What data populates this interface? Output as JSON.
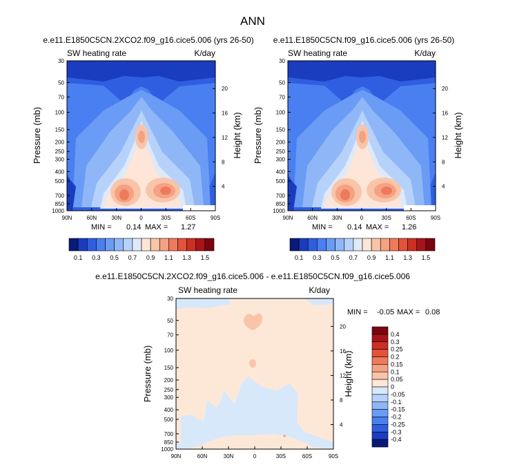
{
  "page": {
    "title": "ANN"
  },
  "colors": {
    "seq": [
      "#0a1a7a",
      "#1a3cbf",
      "#2f5fe0",
      "#4a7ff2",
      "#6a9bf5",
      "#8fb7f7",
      "#b7d2fa",
      "#dfe9f8",
      "#fde6d8",
      "#f9c4a8",
      "#f5a183",
      "#ee7a5c",
      "#e4523a",
      "#cc3022",
      "#a8141a",
      "#7a0510"
    ],
    "diff": [
      "#0a1a7a",
      "#1a3cbf",
      "#2f5fe0",
      "#4a7ff2",
      "#6a9bf5",
      "#8fb7f7",
      "#b7d2fa",
      "#d8e8fb",
      "#fde8d8",
      "#f9c4a8",
      "#f5a183",
      "#ee7a5c",
      "#e4523a",
      "#cc3022",
      "#a8141a",
      "#7a0510"
    ]
  },
  "chart_data": [
    {
      "type": "heatmap",
      "title": "e.e11.E1850C5CN.2XCO2.f09_g16.cice5.006 (yrs 26-50)",
      "left_label": "SW heating rate",
      "right_label": "K/day",
      "ylabel": "Pressure (mb)",
      "y2label": "Height (km)",
      "x_ticks": [
        "90N",
        "60N",
        "30N",
        "0",
        "30S",
        "60S",
        "90S"
      ],
      "y_ticks": [
        "30",
        "50",
        "70",
        "100",
        "150",
        "200",
        "250",
        "300",
        "400",
        "500",
        "700",
        "850",
        "1000"
      ],
      "y2_ticks": [
        "20",
        "16",
        "12",
        "8",
        "4"
      ],
      "min_label": "MIN =",
      "min_value": "0.14",
      "max_label": "MAX =",
      "max_value": "1.27",
      "colorbar_labels": [
        "0.1",
        "0.3",
        "0.5",
        "0.7",
        "0.9",
        "1.1",
        "1.3",
        "1.5"
      ]
    },
    {
      "type": "heatmap",
      "title": "e.e11.E1850C5CN.f09_g16.cice5.006 (yrs 26-50)",
      "left_label": "SW heating rate",
      "right_label": "K/day",
      "ylabel": "Pressure (mb)",
      "y2label": "Height (km)",
      "x_ticks": [
        "90N",
        "60N",
        "30N",
        "0",
        "30S",
        "60S",
        "90S"
      ],
      "y_ticks": [
        "30",
        "50",
        "70",
        "100",
        "150",
        "200",
        "250",
        "300",
        "400",
        "500",
        "700",
        "850",
        "1000"
      ],
      "y2_ticks": [
        "20",
        "16",
        "12",
        "8",
        "4"
      ],
      "min_label": "MIN =",
      "min_value": "0.14",
      "max_label": "MAX =",
      "max_value": "1.26",
      "colorbar_labels": [
        "0.1",
        "0.3",
        "0.5",
        "0.7",
        "0.9",
        "1.1",
        "1.3",
        "1.5"
      ]
    },
    {
      "type": "heatmap",
      "title": "e.e11.E1850C5CN.2XCO2.f09_g16.cice5.006 - e.e11.E1850C5CN.f09_g16.cice5.006",
      "left_label": "SW heating rate",
      "right_label": "K/day",
      "ylabel": "Pressure (mb)",
      "y2label": "Height (km)",
      "x_ticks": [
        "90N",
        "60N",
        "30N",
        "0",
        "30S",
        "60S",
        "90S"
      ],
      "y_ticks": [
        "30",
        "50",
        "70",
        "100",
        "150",
        "200",
        "250",
        "300",
        "400",
        "500",
        "700",
        "850",
        "1000"
      ],
      "y2_ticks": [
        "20",
        "16",
        "12",
        "8",
        "4"
      ],
      "min_label": "MIN =",
      "min_value": "-0.05",
      "max_label": "MAX =",
      "max_value": "0.08",
      "colorbar_labels": [
        "0.4",
        "0.3",
        "0.25",
        "0.2",
        "0.15",
        "0.1",
        "0.05",
        "0",
        "-0.05",
        "-0.1",
        "-0.15",
        "-0.2",
        "-0.25",
        "-0.3",
        "-0.4"
      ]
    }
  ]
}
